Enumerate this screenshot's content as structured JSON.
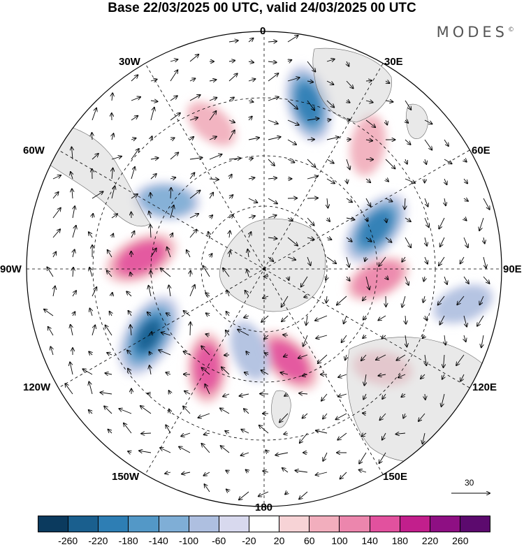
{
  "title": "Base 22/03/2025 00 UTC, valid 24/03/2025 00 UTC",
  "brand": "MODES",
  "brand_mark": "©",
  "longitude_labels": [
    {
      "id": "0",
      "text": "0"
    },
    {
      "id": "30E",
      "text": "30E"
    },
    {
      "id": "60E",
      "text": "60E"
    },
    {
      "id": "90E",
      "text": "90E"
    },
    {
      "id": "120E",
      "text": "120E"
    },
    {
      "id": "150E",
      "text": "150E"
    },
    {
      "id": "180",
      "text": "180"
    },
    {
      "id": "150W",
      "text": "150W"
    },
    {
      "id": "120W",
      "text": "120W"
    },
    {
      "id": "90W",
      "text": "90W"
    },
    {
      "id": "60W",
      "text": "60W"
    },
    {
      "id": "30W",
      "text": "30W"
    }
  ],
  "vector_reference": {
    "label": "30"
  },
  "colorbar": {
    "colors": [
      "#0b3a5e",
      "#1a5f8e",
      "#2e7eb4",
      "#5398c7",
      "#7faed6",
      "#aebfe0",
      "#d8d9ee",
      "#ffffff",
      "#f7d3d6",
      "#f2aebd",
      "#ec86ad",
      "#e2519e",
      "#c21f8c",
      "#8e0f83",
      "#5c0a6e"
    ],
    "ticks": [
      "-260",
      "-220",
      "-180",
      "-140",
      "-100",
      "-60",
      "-20",
      "20",
      "60",
      "100",
      "140",
      "180",
      "220",
      "260"
    ]
  },
  "map": {
    "projection": "south-polar-stereographic",
    "anomalies": [
      {
        "lon": 15,
        "r": 0.72,
        "value": -180
      },
      {
        "lon": 40,
        "r": 0.68,
        "value": 90
      },
      {
        "lon": 70,
        "r": 0.5,
        "value": -200
      },
      {
        "lon": 95,
        "r": 0.48,
        "value": 110
      },
      {
        "lon": 100,
        "r": 0.85,
        "value": -90
      },
      {
        "lon": 130,
        "r": 0.65,
        "value": 80
      },
      {
        "lon": 165,
        "r": 0.4,
        "value": 150
      },
      {
        "lon": -170,
        "r": 0.35,
        "value": -90
      },
      {
        "lon": -150,
        "r": 0.48,
        "value": 140
      },
      {
        "lon": -120,
        "r": 0.56,
        "value": -240
      },
      {
        "lon": -85,
        "r": 0.52,
        "value": 170
      },
      {
        "lon": -55,
        "r": 0.5,
        "value": -110
      },
      {
        "lon": -20,
        "r": 0.65,
        "value": 60
      }
    ]
  }
}
